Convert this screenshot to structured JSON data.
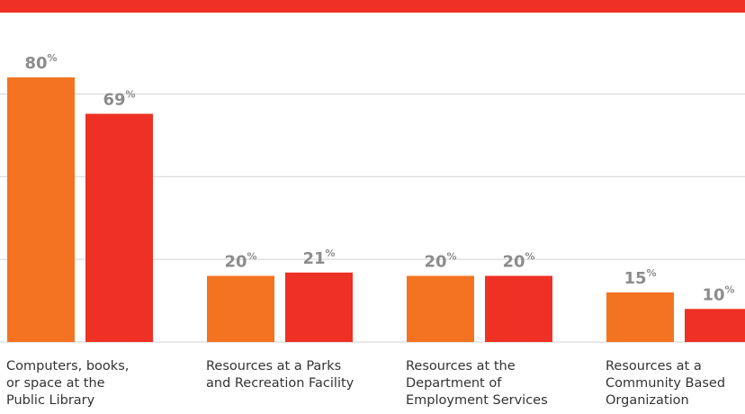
{
  "chart_data": {
    "type": "bar",
    "categories": [
      "Computers, books,\nor space at the\nPublic Library",
      "Resources at a Parks\nand Recreation Facility",
      "Resources at the\nDepartment of\nEmployment Services",
      "Resources at a\nCommunity Based\nOrganization"
    ],
    "series": [
      {
        "color": "#f47321",
        "values": [
          80,
          20,
          20,
          15
        ],
        "value_labels": [
          "80%",
          "20%",
          "20%",
          "15%"
        ]
      },
      {
        "color": "#ee3124",
        "values": [
          69,
          21,
          20,
          10
        ],
        "value_labels": [
          "69%",
          "21%",
          "20%",
          "10%"
        ]
      }
    ],
    "ylim": [
      0,
      100
    ],
    "yticks": [
      0,
      25,
      50,
      75
    ],
    "grid": true
  }
}
